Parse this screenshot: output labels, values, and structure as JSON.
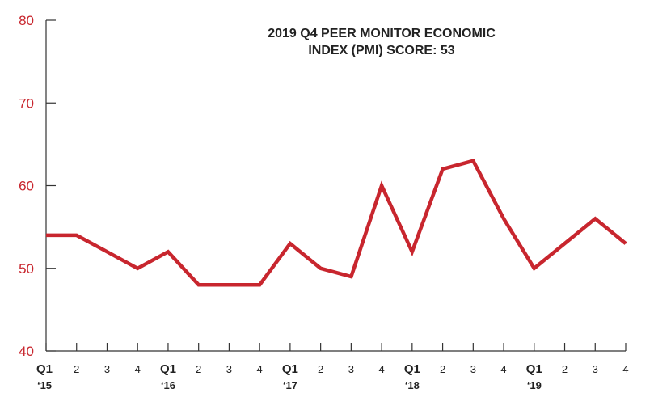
{
  "chart_data": {
    "type": "line",
    "title_lines": [
      "2019 Q4 PEER MONITOR ECONOMIC",
      "INDEX (PMI) SCORE: 53"
    ],
    "x": [
      "Q1 '15",
      "2",
      "3",
      "4",
      "Q1 '16",
      "2",
      "3",
      "4",
      "Q1 '17",
      "2",
      "3",
      "4",
      "Q1 '18",
      "2",
      "3",
      "4",
      "Q1 '19",
      "2",
      "3",
      "4"
    ],
    "x_tick_labels": [
      {
        "label": "Q1",
        "year": "‘15"
      },
      {
        "label": "2",
        "year": ""
      },
      {
        "label": "3",
        "year": ""
      },
      {
        "label": "4",
        "year": ""
      },
      {
        "label": "Q1",
        "year": "‘16"
      },
      {
        "label": "2",
        "year": ""
      },
      {
        "label": "3",
        "year": ""
      },
      {
        "label": "4",
        "year": ""
      },
      {
        "label": "Q1",
        "year": "‘17"
      },
      {
        "label": "2",
        "year": ""
      },
      {
        "label": "3",
        "year": ""
      },
      {
        "label": "4",
        "year": ""
      },
      {
        "label": "Q1",
        "year": "‘18"
      },
      {
        "label": "2",
        "year": ""
      },
      {
        "label": "3",
        "year": ""
      },
      {
        "label": "4",
        "year": ""
      },
      {
        "label": "Q1",
        "year": "‘19"
      },
      {
        "label": "2",
        "year": ""
      },
      {
        "label": "3",
        "year": ""
      },
      {
        "label": "4",
        "year": ""
      }
    ],
    "series": [
      {
        "values": [
          54,
          54,
          52,
          50,
          52,
          48,
          48,
          48,
          53,
          50,
          49,
          60,
          52,
          62,
          63,
          56,
          50,
          53,
          56,
          53
        ]
      }
    ],
    "y_ticks": [
      40,
      50,
      60,
      70,
      80
    ],
    "ylim": [
      40,
      80
    ],
    "grid": false,
    "colors": {
      "series": "#c8262e",
      "y_tick_labels": "#c8262e",
      "axis": "#333333",
      "text": "#222222"
    }
  }
}
